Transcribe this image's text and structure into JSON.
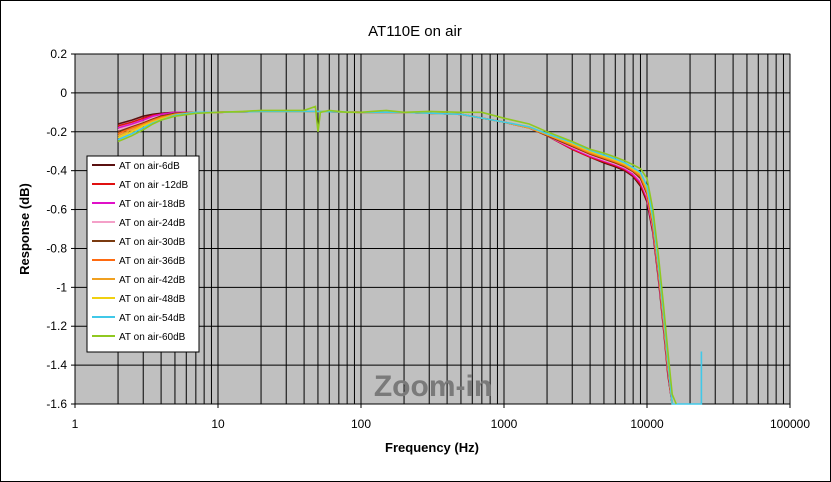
{
  "chart_data": {
    "type": "line",
    "title": "AT110E on air",
    "xlabel": "Frequency (Hz)",
    "ylabel": "Response (dB)",
    "x_scale": "log",
    "xlim": [
      1,
      100000
    ],
    "ylim": [
      -1.6,
      0.2
    ],
    "x_ticks": [
      "1",
      "10",
      "100",
      "1000",
      "10000",
      "100000"
    ],
    "y_ticks": [
      "0.2",
      "0",
      "-0.2",
      "-0.4",
      "-0.6",
      "-0.8",
      "-1",
      "-1.2",
      "-1.4",
      "-1.6"
    ],
    "grid": true,
    "legend_position": "left",
    "annotation": "Zoom-in",
    "series": [
      {
        "name": "AT on air-6dB",
        "color": "#5a1010",
        "x": [
          2,
          2.5,
          3,
          3.5,
          4,
          5,
          7,
          10,
          20,
          50,
          100,
          200,
          500,
          1000,
          1500,
          2000,
          3000,
          4000,
          5000,
          6000,
          7000,
          8000,
          9000,
          10000,
          11000,
          12000,
          13000,
          14000,
          15000
        ],
        "y": [
          -0.16,
          -0.14,
          -0.12,
          -0.11,
          -0.105,
          -0.1,
          -0.1,
          -0.1,
          -0.095,
          -0.095,
          -0.1,
          -0.1,
          -0.11,
          -0.15,
          -0.18,
          -0.22,
          -0.29,
          -0.33,
          -0.36,
          -0.38,
          -0.4,
          -0.43,
          -0.48,
          -0.56,
          -0.72,
          -0.95,
          -1.2,
          -1.45,
          -1.6
        ]
      },
      {
        "name": "AT on air -12dB",
        "color": "#e01010",
        "x": [
          2,
          2.5,
          3,
          3.5,
          4,
          5,
          7,
          10,
          20,
          50,
          100,
          200,
          500,
          1000,
          1500,
          2000,
          3000,
          4000,
          5000,
          6000,
          7000,
          8000,
          9000,
          10000,
          11000,
          12000,
          13000,
          14000,
          15000
        ],
        "y": [
          -0.17,
          -0.15,
          -0.13,
          -0.115,
          -0.11,
          -0.1,
          -0.1,
          -0.1,
          -0.095,
          -0.095,
          -0.1,
          -0.1,
          -0.11,
          -0.15,
          -0.18,
          -0.22,
          -0.29,
          -0.33,
          -0.355,
          -0.375,
          -0.395,
          -0.425,
          -0.47,
          -0.55,
          -0.71,
          -0.94,
          -1.19,
          -1.44,
          -1.6
        ]
      },
      {
        "name": "AT on air-18dB",
        "color": "#e010c8",
        "x": [
          2,
          2.5,
          3,
          3.5,
          4,
          5,
          7,
          10,
          20,
          50,
          100,
          200,
          500,
          1000,
          1500,
          2000,
          3000,
          4000,
          5000,
          6000,
          7000,
          8000,
          9000,
          10000,
          11000,
          12000,
          13000,
          14000,
          15000
        ],
        "y": [
          -0.18,
          -0.16,
          -0.14,
          -0.12,
          -0.11,
          -0.1,
          -0.1,
          -0.1,
          -0.095,
          -0.095,
          -0.1,
          -0.1,
          -0.11,
          -0.15,
          -0.18,
          -0.22,
          -0.285,
          -0.325,
          -0.35,
          -0.37,
          -0.39,
          -0.42,
          -0.46,
          -0.54,
          -0.7,
          -0.93,
          -1.18,
          -1.43,
          -1.6
        ]
      },
      {
        "name": "AT on air-24dB",
        "color": "#f4a0c8",
        "x": [
          2,
          2.5,
          3,
          3.5,
          4,
          5,
          7,
          10,
          20,
          50,
          100,
          200,
          500,
          1000,
          1500,
          2000,
          3000,
          4000,
          5000,
          6000,
          7000,
          8000,
          9000,
          10000,
          11000,
          12000,
          13000,
          14000,
          15000
        ],
        "y": [
          -0.19,
          -0.17,
          -0.15,
          -0.13,
          -0.12,
          -0.105,
          -0.1,
          -0.1,
          -0.095,
          -0.095,
          -0.1,
          -0.1,
          -0.11,
          -0.15,
          -0.18,
          -0.22,
          -0.28,
          -0.32,
          -0.345,
          -0.365,
          -0.385,
          -0.41,
          -0.45,
          -0.53,
          -0.69,
          -0.92,
          -1.17,
          -1.42,
          -1.6
        ]
      },
      {
        "name": "AT on air-30dB",
        "color": "#7a3a10",
        "x": [
          2,
          2.5,
          3,
          3.5,
          4,
          5,
          7,
          10,
          20,
          50,
          100,
          200,
          500,
          1000,
          1500,
          2000,
          3000,
          4000,
          5000,
          6000,
          7000,
          8000,
          9000,
          10000,
          11000,
          12000,
          13000,
          14000,
          15000
        ],
        "y": [
          -0.2,
          -0.175,
          -0.155,
          -0.135,
          -0.12,
          -0.105,
          -0.1,
          -0.1,
          -0.095,
          -0.095,
          -0.1,
          -0.1,
          -0.11,
          -0.15,
          -0.18,
          -0.22,
          -0.275,
          -0.315,
          -0.34,
          -0.36,
          -0.38,
          -0.405,
          -0.44,
          -0.52,
          -0.68,
          -0.91,
          -1.16,
          -1.41,
          -1.6
        ]
      },
      {
        "name": "AT on air-36dB",
        "color": "#ff6a10",
        "x": [
          2,
          2.5,
          3,
          3.5,
          4,
          5,
          7,
          10,
          20,
          50,
          100,
          200,
          500,
          1000,
          1500,
          2000,
          3000,
          4000,
          5000,
          6000,
          7000,
          8000,
          9000,
          10000,
          11000,
          12000,
          13000,
          14000,
          15000
        ],
        "y": [
          -0.21,
          -0.18,
          -0.16,
          -0.14,
          -0.125,
          -0.11,
          -0.1,
          -0.1,
          -0.095,
          -0.095,
          -0.1,
          -0.1,
          -0.11,
          -0.15,
          -0.18,
          -0.215,
          -0.27,
          -0.31,
          -0.335,
          -0.355,
          -0.375,
          -0.4,
          -0.43,
          -0.51,
          -0.67,
          -0.9,
          -1.15,
          -1.4,
          -1.6
        ]
      },
      {
        "name": "AT on air-42dB",
        "color": "#f0a020",
        "x": [
          2,
          2.5,
          3,
          3.5,
          4,
          5,
          7,
          10,
          20,
          50,
          100,
          200,
          500,
          1000,
          1500,
          2000,
          3000,
          4000,
          5000,
          6000,
          7000,
          8000,
          9000,
          10000,
          11000,
          12000,
          13000,
          14000,
          15000
        ],
        "y": [
          -0.22,
          -0.19,
          -0.165,
          -0.145,
          -0.13,
          -0.11,
          -0.1,
          -0.1,
          -0.095,
          -0.095,
          -0.1,
          -0.1,
          -0.11,
          -0.15,
          -0.18,
          -0.215,
          -0.265,
          -0.305,
          -0.33,
          -0.35,
          -0.37,
          -0.395,
          -0.42,
          -0.5,
          -0.66,
          -0.89,
          -1.14,
          -1.39,
          -1.6
        ]
      },
      {
        "name": "AT on air-48dB",
        "color": "#f0d010",
        "x": [
          2,
          2.5,
          3,
          3.5,
          4,
          5,
          7,
          10,
          20,
          50,
          100,
          200,
          500,
          1000,
          1500,
          2000,
          3000,
          4000,
          5000,
          6000,
          7000,
          8000,
          9000,
          10000,
          11000,
          12000,
          13000,
          14000,
          15000
        ],
        "y": [
          -0.23,
          -0.2,
          -0.17,
          -0.15,
          -0.135,
          -0.115,
          -0.1,
          -0.1,
          -0.095,
          -0.095,
          -0.1,
          -0.1,
          -0.11,
          -0.15,
          -0.175,
          -0.21,
          -0.26,
          -0.3,
          -0.325,
          -0.345,
          -0.365,
          -0.39,
          -0.415,
          -0.49,
          -0.65,
          -0.88,
          -1.13,
          -1.38,
          -1.6
        ]
      },
      {
        "name": "AT on air-54dB",
        "color": "#40c8e8",
        "x": [
          2,
          2.5,
          3,
          3.5,
          4,
          5,
          7,
          10,
          20,
          50,
          100,
          200,
          500,
          1000,
          1500,
          2000,
          3000,
          4000,
          5000,
          6000,
          7000,
          8000,
          9000,
          10000,
          11000,
          12000,
          13000,
          14000,
          15000,
          20000,
          24000,
          24000,
          24000
        ],
        "y": [
          -0.24,
          -0.21,
          -0.18,
          -0.155,
          -0.14,
          -0.115,
          -0.1,
          -0.1,
          -0.095,
          -0.095,
          -0.1,
          -0.1,
          -0.11,
          -0.15,
          -0.175,
          -0.21,
          -0.255,
          -0.295,
          -0.32,
          -0.34,
          -0.36,
          -0.385,
          -0.41,
          -0.48,
          -0.64,
          -0.87,
          -1.12,
          -1.37,
          -1.6,
          -1.6,
          -1.6,
          -1.33,
          -1.6
        ]
      },
      {
        "name": "AT on air-60dB",
        "color": "#90c820",
        "x": [
          2,
          2.5,
          3,
          3.5,
          4,
          5,
          7,
          10,
          15,
          20,
          30,
          40,
          48,
          50,
          52,
          60,
          80,
          100,
          150,
          200,
          300,
          500,
          700,
          1000,
          1500,
          2000,
          3000,
          4000,
          5000,
          6000,
          7000,
          8000,
          9000,
          10000,
          11000,
          12000,
          13000,
          14000,
          15000,
          16000
        ],
        "y": [
          -0.25,
          -0.22,
          -0.19,
          -0.16,
          -0.14,
          -0.12,
          -0.105,
          -0.1,
          -0.095,
          -0.09,
          -0.09,
          -0.09,
          -0.07,
          -0.2,
          -0.1,
          -0.09,
          -0.1,
          -0.1,
          -0.09,
          -0.1,
          -0.095,
          -0.1,
          -0.1,
          -0.13,
          -0.16,
          -0.2,
          -0.25,
          -0.29,
          -0.31,
          -0.33,
          -0.35,
          -0.37,
          -0.39,
          -0.44,
          -0.6,
          -0.83,
          -1.08,
          -1.33,
          -1.55,
          -1.6
        ]
      }
    ]
  }
}
